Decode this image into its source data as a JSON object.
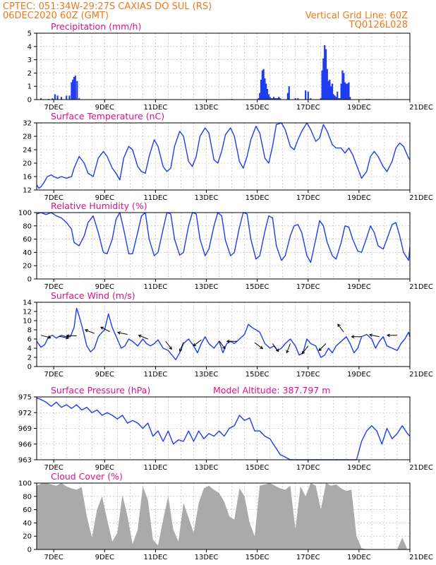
{
  "header": {
    "line1": "CPTEC:   051:34W-29:27S   CAXIAS DO SUL (RS)",
    "line2_left": "06DEC2020 60Z (GMT)",
    "line2_right": "Vertical Grid Line: 60Z",
    "line3_right": "TQ0126L028"
  },
  "colors": {
    "header": "#f07818",
    "panel_title": "#e0108c",
    "series": "#1f3cf0",
    "cloud": "#aaaaaa",
    "grid": "#999999"
  },
  "chart_data": [
    {
      "id": "precip",
      "type": "bar",
      "title": "Precipitation (mm/h)",
      "x_range_days": [
        6.33,
        21.0
      ],
      "x_ticks": [
        "7DEC",
        "9DEC",
        "11DEC",
        "13DEC",
        "15DEC",
        "17DEC",
        "19DEC",
        "21DEC"
      ],
      "ylim": [
        0,
        5
      ],
      "y_ticks": [
        0,
        1,
        2,
        3,
        4,
        5
      ],
      "x": [
        6.5,
        6.8,
        6.95,
        7.05,
        7.15,
        7.3,
        7.5,
        7.62,
        7.7,
        7.75,
        7.8,
        7.85,
        7.92,
        8.0,
        14.0,
        15.05,
        15.1,
        15.15,
        15.2,
        15.25,
        15.3,
        15.35,
        15.4,
        15.45,
        15.5,
        15.55,
        15.6,
        15.65,
        15.7,
        15.75,
        15.8,
        15.85,
        15.9,
        16.2,
        16.25,
        16.5,
        16.6,
        16.9,
        17.0,
        17.1,
        17.5,
        17.55,
        17.6,
        17.65,
        17.7,
        17.75,
        17.8,
        17.85,
        17.9,
        17.95,
        18.0,
        18.05,
        18.1,
        18.15,
        18.2,
        18.25,
        18.3,
        18.35,
        18.4,
        18.45,
        18.5,
        18.55,
        18.6,
        18.65,
        19.3,
        19.4
      ],
      "values": [
        0.1,
        0.05,
        0.1,
        0.4,
        0.3,
        0.2,
        0.3,
        0.3,
        1.3,
        1.5,
        1.7,
        1.8,
        1.4,
        0.1,
        0.05,
        0.1,
        0.5,
        1.5,
        2.2,
        2.3,
        1.6,
        1.2,
        0.8,
        0.4,
        0.2,
        0.1,
        0.1,
        0.2,
        0.1,
        0.1,
        0.1,
        0.2,
        0.1,
        0.5,
        1.0,
        0.1,
        0.1,
        0.7,
        0.6,
        0.1,
        0.1,
        2.2,
        3.1,
        4.1,
        3.8,
        2.3,
        1.4,
        1.5,
        1.0,
        1.2,
        0.4,
        0.3,
        0.2,
        0.6,
        0.1,
        0.1,
        1.2,
        2.2,
        2.0,
        1.3,
        1.2,
        1.2,
        1.3,
        0.2,
        0.05,
        0.05
      ]
    },
    {
      "id": "temp",
      "type": "line",
      "title": "Surface Temperature (nC)",
      "x_range_days": [
        6.33,
        21.0
      ],
      "x_ticks": [
        "7DEC",
        "9DEC",
        "11DEC",
        "13DEC",
        "15DEC",
        "17DEC",
        "19DEC",
        "21DEC"
      ],
      "ylim": [
        12,
        32
      ],
      "y_ticks": [
        12,
        16,
        20,
        24,
        28,
        32
      ],
      "x": [
        6.33,
        6.42,
        6.5,
        6.6,
        6.75,
        6.9,
        7.0,
        7.15,
        7.3,
        7.5,
        7.7,
        7.8,
        8.0,
        8.2,
        8.35,
        8.55,
        8.75,
        8.95,
        9.1,
        9.3,
        9.45,
        9.6,
        9.75,
        9.95,
        10.1,
        10.3,
        10.45,
        10.6,
        10.75,
        10.95,
        11.1,
        11.3,
        11.45,
        11.6,
        11.75,
        11.95,
        12.1,
        12.3,
        12.45,
        12.6,
        12.75,
        12.95,
        13.1,
        13.3,
        13.45,
        13.6,
        13.75,
        13.95,
        14.1,
        14.3,
        14.45,
        14.6,
        14.75,
        14.95,
        15.1,
        15.3,
        15.45,
        15.6,
        15.75,
        15.95,
        16.1,
        16.3,
        16.45,
        16.6,
        16.75,
        16.95,
        17.1,
        17.3,
        17.45,
        17.6,
        17.75,
        17.95,
        18.1,
        18.3,
        18.45,
        18.6,
        18.75,
        18.95,
        19.1,
        19.3,
        19.45,
        19.6,
        19.75,
        19.95,
        20.1,
        20.3,
        20.45,
        20.6,
        20.75,
        20.95,
        21.0
      ],
      "values": [
        13.5,
        12.5,
        13.0,
        14.0,
        16.0,
        16.5,
        16.0,
        15.5,
        16.0,
        15.5,
        16.0,
        18.5,
        22.0,
        20.0,
        17.0,
        16.0,
        21.5,
        23.5,
        22.0,
        18.5,
        17.0,
        15.0,
        21.5,
        25.0,
        24.0,
        19.0,
        17.5,
        17.0,
        22.0,
        27.0,
        25.0,
        19.0,
        17.5,
        18.5,
        25.0,
        29.5,
        28.0,
        20.5,
        19.0,
        22.0,
        28.0,
        30.5,
        29.0,
        21.0,
        20.0,
        23.5,
        28.5,
        30.5,
        28.0,
        20.5,
        18.5,
        22.0,
        27.0,
        31.0,
        29.0,
        21.5,
        20.0,
        25.0,
        31.5,
        32.0,
        30.0,
        25.0,
        24.0,
        27.0,
        29.5,
        32.0,
        30.0,
        26.5,
        27.5,
        31.5,
        29.5,
        25.5,
        24.5,
        24.5,
        23.0,
        24.5,
        22.5,
        18.5,
        15.5,
        17.5,
        22.0,
        23.5,
        22.0,
        19.0,
        17.5,
        20.5,
        24.5,
        26.0,
        25.0,
        21.5,
        21.0
      ]
    },
    {
      "id": "rh",
      "type": "line",
      "title": "Relative Humidity (%)",
      "x_range_days": [
        6.33,
        21.0
      ],
      "x_ticks": [
        "7DEC",
        "9DEC",
        "11DEC",
        "13DEC",
        "15DEC",
        "17DEC",
        "19DEC",
        "21DEC"
      ],
      "ylim": [
        0,
        100
      ],
      "y_ticks": [
        0,
        20,
        40,
        60,
        80,
        100
      ],
      "x": [
        6.33,
        6.5,
        6.7,
        6.9,
        7.1,
        7.3,
        7.5,
        7.7,
        7.8,
        8.0,
        8.2,
        8.35,
        8.55,
        8.75,
        8.95,
        9.1,
        9.3,
        9.45,
        9.6,
        9.75,
        9.95,
        10.1,
        10.3,
        10.45,
        10.6,
        10.75,
        10.95,
        11.1,
        11.3,
        11.45,
        11.6,
        11.75,
        11.95,
        12.1,
        12.3,
        12.45,
        12.6,
        12.75,
        12.95,
        13.1,
        13.3,
        13.45,
        13.6,
        13.75,
        13.95,
        14.1,
        14.3,
        14.45,
        14.6,
        14.75,
        14.95,
        15.1,
        15.3,
        15.45,
        15.6,
        15.75,
        15.95,
        16.1,
        16.3,
        16.45,
        16.6,
        16.75,
        16.95,
        17.1,
        17.3,
        17.45,
        17.6,
        17.75,
        17.95,
        18.1,
        18.3,
        18.45,
        18.6,
        18.75,
        18.95,
        19.1,
        19.3,
        19.45,
        19.6,
        19.75,
        19.95,
        20.1,
        20.3,
        20.45,
        20.6,
        20.75,
        20.95,
        21.0
      ],
      "values": [
        98,
        100,
        97,
        100,
        95,
        92,
        85,
        75,
        55,
        50,
        65,
        85,
        95,
        70,
        40,
        38,
        60,
        90,
        100,
        75,
        38,
        38,
        70,
        95,
        100,
        60,
        35,
        40,
        75,
        100,
        98,
        60,
        36,
        40,
        80,
        100,
        98,
        60,
        35,
        45,
        80,
        100,
        95,
        58,
        35,
        40,
        78,
        100,
        98,
        60,
        30,
        35,
        72,
        95,
        92,
        50,
        28,
        35,
        65,
        80,
        82,
        70,
        35,
        25,
        60,
        88,
        80,
        55,
        35,
        30,
        55,
        80,
        78,
        60,
        42,
        40,
        62,
        80,
        70,
        50,
        45,
        60,
        82,
        85,
        65,
        40,
        28,
        48
      ]
    },
    {
      "id": "wind",
      "type": "line",
      "title": "Surface Wind (m/s)",
      "x_range_days": [
        6.33,
        21.0
      ],
      "x_ticks": [
        "7DEC",
        "9DEC",
        "11DEC",
        "13DEC",
        "15DEC",
        "17DEC",
        "19DEC",
        "21DEC"
      ],
      "ylim": [
        0,
        14
      ],
      "y_ticks": [
        0,
        2,
        4,
        6,
        8,
        10,
        12,
        14
      ],
      "x": [
        6.33,
        6.5,
        6.65,
        6.8,
        6.95,
        7.1,
        7.3,
        7.5,
        7.65,
        7.8,
        7.9,
        8.0,
        8.15,
        8.3,
        8.45,
        8.6,
        8.75,
        8.9,
        9.0,
        9.15,
        9.3,
        9.5,
        9.65,
        9.8,
        9.95,
        10.1,
        10.3,
        10.5,
        10.65,
        10.8,
        10.95,
        11.1,
        11.3,
        11.5,
        11.65,
        11.8,
        11.95,
        12.1,
        12.3,
        12.5,
        12.65,
        12.8,
        12.95,
        13.1,
        13.3,
        13.5,
        13.65,
        13.8,
        13.95,
        14.1,
        14.3,
        14.5,
        14.65,
        14.8,
        14.95,
        15.1,
        15.3,
        15.5,
        15.65,
        15.8,
        15.95,
        16.1,
        16.3,
        16.5,
        16.65,
        16.8,
        16.95,
        17.1,
        17.3,
        17.5,
        17.65,
        17.8,
        17.95,
        18.1,
        18.3,
        18.5,
        18.65,
        18.8,
        18.95,
        19.1,
        19.3,
        19.5,
        19.65,
        19.8,
        19.95,
        20.1,
        20.3,
        20.5,
        20.65,
        20.8,
        20.95,
        21.0
      ],
      "values": [
        5.5,
        4.2,
        4.8,
        6.5,
        6.8,
        6.2,
        6.8,
        6.5,
        6.5,
        8.5,
        12.7,
        11.0,
        8.0,
        4.5,
        3.2,
        4.0,
        6.5,
        7.5,
        8.0,
        11.5,
        8.5,
        6.0,
        4.0,
        4.5,
        6.0,
        5.5,
        4.5,
        6.0,
        5.0,
        4.5,
        5.0,
        5.8,
        4.0,
        3.5,
        2.5,
        1.5,
        3.0,
        5.0,
        6.0,
        4.5,
        3.0,
        5.0,
        6.5,
        5.0,
        4.0,
        5.5,
        3.0,
        5.0,
        5.5,
        5.0,
        6.0,
        7.0,
        9.2,
        8.5,
        8.0,
        7.5,
        5.0,
        4.0,
        4.5,
        3.5,
        4.0,
        5.0,
        6.0,
        4.5,
        2.5,
        3.0,
        6.0,
        5.0,
        4.5,
        2.0,
        2.5,
        4.0,
        3.0,
        4.5,
        5.5,
        6.5,
        5.0,
        3.0,
        4.0,
        6.5,
        7.0,
        6.0,
        4.0,
        5.5,
        6.5,
        4.5,
        4.0,
        3.5,
        5.0,
        6.0,
        7.5,
        6.5
      ],
      "barbs": [
        {
          "x": 6.5,
          "y": 6.8,
          "dx": 4,
          "dy": -1
        },
        {
          "x": 7.2,
          "y": 6.6,
          "dx": 5,
          "dy": -1
        },
        {
          "x": 7.9,
          "y": 6.7,
          "dx": -5,
          "dy": 0
        },
        {
          "x": 8.6,
          "y": 7.2,
          "dx": -5,
          "dy": 2
        },
        {
          "x": 9.2,
          "y": 7.6,
          "dx": -4,
          "dy": 2
        },
        {
          "x": 9.9,
          "y": 7.0,
          "dx": -5,
          "dy": 1
        },
        {
          "x": 10.7,
          "y": 6.0,
          "dx": -5,
          "dy": 2
        },
        {
          "x": 11.4,
          "y": 5.5,
          "dx": 3,
          "dy": -4
        },
        {
          "x": 12.1,
          "y": 5.3,
          "dx": -2,
          "dy": -5
        },
        {
          "x": 12.8,
          "y": 5.8,
          "dx": -4,
          "dy": -3
        },
        {
          "x": 13.5,
          "y": 5.6,
          "dx": 3,
          "dy": -4
        },
        {
          "x": 14.2,
          "y": 5.5,
          "dx": -5,
          "dy": 0
        },
        {
          "x": 14.9,
          "y": 5.2,
          "dx": 4,
          "dy": -3
        },
        {
          "x": 15.6,
          "y": 5.0,
          "dx": 3,
          "dy": -4
        },
        {
          "x": 16.3,
          "y": 5.0,
          "dx": -2,
          "dy": -5
        },
        {
          "x": 17.0,
          "y": 4.5,
          "dx": -3,
          "dy": -4
        },
        {
          "x": 17.7,
          "y": 5.0,
          "dx": -3,
          "dy": -3
        },
        {
          "x": 18.4,
          "y": 7.5,
          "dx": -3,
          "dy": 4
        },
        {
          "x": 19.1,
          "y": 6.5,
          "dx": -5,
          "dy": 0
        },
        {
          "x": 19.8,
          "y": 6.5,
          "dx": -5,
          "dy": 1
        },
        {
          "x": 20.5,
          "y": 6.8,
          "dx": -5,
          "dy": 0
        }
      ]
    },
    {
      "id": "pressure",
      "type": "line",
      "title": "Surface Pressure (hPa)",
      "subtitle": "Model Altitude: 387.797 m",
      "x_range_days": [
        6.33,
        21.0
      ],
      "x_ticks": [
        "7DEC",
        "9DEC",
        "11DEC",
        "13DEC",
        "15DEC",
        "17DEC",
        "19DEC",
        "21DEC"
      ],
      "ylim": [
        963,
        975
      ],
      "y_ticks": [
        963,
        966,
        969,
        972,
        975
      ],
      "x": [
        6.33,
        6.5,
        6.7,
        6.9,
        7.1,
        7.3,
        7.5,
        7.7,
        7.9,
        8.1,
        8.3,
        8.5,
        8.7,
        8.9,
        9.1,
        9.3,
        9.5,
        9.7,
        9.9,
        10.1,
        10.3,
        10.5,
        10.7,
        10.9,
        11.1,
        11.3,
        11.5,
        11.7,
        11.9,
        12.1,
        12.3,
        12.5,
        12.7,
        12.9,
        13.1,
        13.3,
        13.5,
        13.7,
        13.9,
        14.1,
        14.3,
        14.5,
        14.7,
        14.9,
        15.1,
        15.3,
        15.5,
        15.7,
        15.9,
        16.1,
        16.3,
        16.5,
        16.7,
        16.9,
        17.1,
        17.3,
        17.5,
        17.7,
        17.9,
        18.1,
        18.3,
        18.5,
        18.7,
        18.9,
        19.1,
        19.3,
        19.5,
        19.7,
        19.9,
        20.1,
        20.3,
        20.5,
        20.7,
        20.9,
        21.0
      ],
      "values": [
        974.8,
        974.5,
        974.0,
        973.2,
        974.0,
        973.0,
        973.5,
        972.8,
        973.5,
        972.5,
        973.0,
        972.0,
        972.5,
        971.5,
        972.0,
        971.5,
        970.8,
        971.5,
        970.0,
        970.5,
        970.0,
        969.0,
        970.0,
        967.5,
        968.5,
        966.5,
        968.5,
        966.0,
        966.8,
        966.5,
        968.5,
        966.5,
        968.5,
        967.0,
        968.0,
        967.5,
        968.5,
        967.5,
        969.0,
        969.5,
        971.5,
        970.5,
        971.0,
        968.5,
        968.5,
        967.5,
        967.0,
        965.5,
        964.0,
        963.5,
        963.0,
        963.0,
        963.0,
        963.0,
        963.0,
        963.0,
        963.0,
        963.0,
        963.0,
        963.0,
        963.0,
        963.0,
        963.0,
        963.0,
        966.5,
        968.5,
        969.5,
        968.5,
        966.0,
        969.0,
        967.0,
        968.0,
        969.5,
        968.0,
        967.5
      ]
    },
    {
      "id": "cloud",
      "type": "area",
      "title": "Cloud Cover (%)",
      "x_range_days": [
        6.33,
        21.0
      ],
      "x_ticks": [
        "7DEC",
        "9DEC",
        "11DEC",
        "13DEC",
        "15DEC",
        "17DEC",
        "19DEC",
        "21DEC"
      ],
      "ylim": [
        0,
        100
      ],
      "y_ticks": [
        0,
        20,
        40,
        60,
        80,
        100
      ],
      "x": [
        6.33,
        6.5,
        6.7,
        6.9,
        7.1,
        7.3,
        7.5,
        7.7,
        7.9,
        8.1,
        8.3,
        8.5,
        8.7,
        8.9,
        9.1,
        9.3,
        9.5,
        9.7,
        9.9,
        10.1,
        10.3,
        10.5,
        10.7,
        10.9,
        11.1,
        11.3,
        11.5,
        11.7,
        11.9,
        12.1,
        12.3,
        12.5,
        12.7,
        12.9,
        13.1,
        13.3,
        13.5,
        13.7,
        13.9,
        14.1,
        14.3,
        14.5,
        14.7,
        14.9,
        15.1,
        15.3,
        15.5,
        15.7,
        15.9,
        16.1,
        16.3,
        16.5,
        16.7,
        16.9,
        17.1,
        17.3,
        17.5,
        17.7,
        17.9,
        18.1,
        18.3,
        18.5,
        18.7,
        18.9,
        19.1,
        19.3,
        19.5,
        19.7,
        19.9,
        20.1,
        20.3,
        20.5,
        20.7,
        20.9,
        21.0
      ],
      "values": [
        96,
        99,
        100,
        98,
        96,
        100,
        95,
        92,
        90,
        94,
        50,
        18,
        60,
        80,
        45,
        12,
        25,
        82,
        50,
        8,
        30,
        95,
        75,
        15,
        6,
        45,
        80,
        30,
        12,
        70,
        48,
        25,
        70,
        92,
        96,
        90,
        85,
        72,
        50,
        45,
        92,
        80,
        40,
        20,
        96,
        98,
        100,
        96,
        92,
        90,
        96,
        30,
        95,
        80,
        100,
        96,
        60,
        100,
        96,
        98,
        92,
        88,
        90,
        20,
        2,
        0,
        0,
        0,
        0,
        0,
        0,
        0,
        18,
        0,
        0
      ]
    }
  ]
}
